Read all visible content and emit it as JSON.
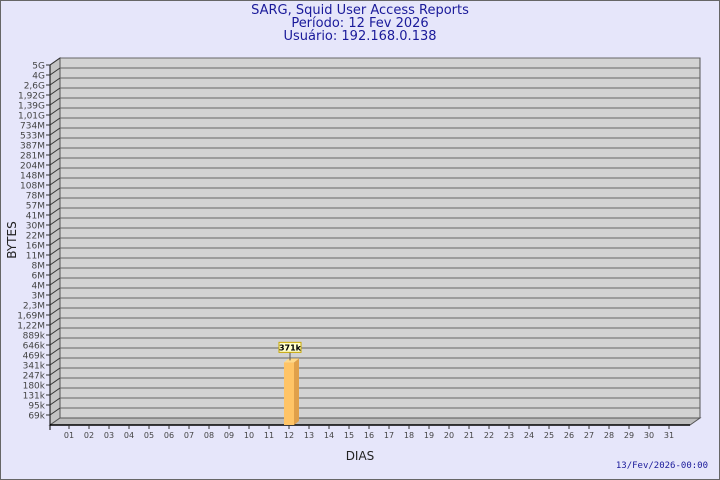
{
  "title": "SARG, Squid User Access Reports",
  "period": "Período: 12 Fev 2026",
  "user": "Usuário: 192.168.0.138",
  "footer": "13/Fev/2026-00:00",
  "chart_data": {
    "type": "bar",
    "xlabel": "DIAS",
    "ylabel": "BYTES",
    "y_scale": "log",
    "y_tick_labels": [
      "5G",
      "4G",
      "2,6G",
      "1,92G",
      "1,39G",
      "1,01G",
      "734M",
      "533M",
      "387M",
      "281M",
      "204M",
      "148M",
      "108M",
      "78M",
      "57M",
      "41M",
      "30M",
      "22M",
      "16M",
      "11M",
      "8M",
      "6M",
      "4M",
      "3M",
      "2,3M",
      "1,69M",
      "1,22M",
      "889k",
      "646k",
      "469k",
      "341k",
      "247k",
      "180k",
      "131k",
      "95k",
      "69k"
    ],
    "categories": [
      "01",
      "02",
      "03",
      "04",
      "05",
      "06",
      "07",
      "08",
      "09",
      "10",
      "11",
      "12",
      "13",
      "14",
      "15",
      "16",
      "17",
      "18",
      "19",
      "20",
      "21",
      "22",
      "23",
      "24",
      "25",
      "26",
      "27",
      "28",
      "29",
      "30",
      "31"
    ],
    "values": [
      null,
      null,
      null,
      null,
      null,
      null,
      null,
      null,
      null,
      null,
      null,
      371000,
      null,
      null,
      null,
      null,
      null,
      null,
      null,
      null,
      null,
      null,
      null,
      null,
      null,
      null,
      null,
      null,
      null,
      null,
      null
    ],
    "data_labels": {
      "12": "371k"
    },
    "grid": true,
    "colors": {
      "bar": "#ffc466",
      "bar_side": "#e0a04a",
      "plot_bg": "#d3d3d3",
      "background": "#e6e6fa",
      "title": "#1a1a9a"
    }
  }
}
